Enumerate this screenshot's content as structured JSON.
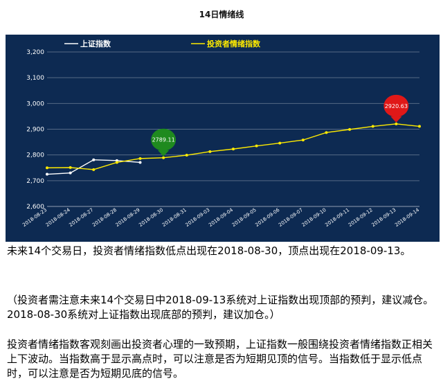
{
  "page": {
    "title": "14日情绪线",
    "paragraph1": "未来14个交易日，投资者情绪指数低点出现在2018-08-30，顶点出现在2018-09-13。",
    "paragraph2": "（投资者需注意未来14个交易日中2018-09-13系统对上证指数出现顶部的预判，建议减仓。2018-08-30系统对上证指数出现底部的预判，建议加仓。）",
    "paragraph3": "投资者情绪指数客观刻画出投资者心理的一致预期，上证指数一般围绕投资者情绪指数正相关上下波动。当指数高于显示高点时，可以注意是否为短期见顶的信号。当指数低于显示低点时，可以注意是否为短期见底的信号。"
  },
  "colors": {
    "background": "#0d2a52",
    "sse_line": "#ffffff",
    "sentiment_line": "#ffeb00",
    "low_marker": "#1f8a1f",
    "high_marker": "#e01818"
  },
  "chart_data": {
    "type": "line",
    "title": "14日情绪线",
    "categories": [
      "2018-08-23",
      "2018-08-24",
      "2018-08-27",
      "2018-08-28",
      "2018-08-29",
      "2018-08-30",
      "2018-08-31",
      "2018-09-03",
      "2018-09-04",
      "2018-09-05",
      "2018-09-06",
      "2018-09-07",
      "2018-09-10",
      "2018-09-11",
      "2018-09-12",
      "2018-09-13",
      "2018-09-14"
    ],
    "series": [
      {
        "name": "上证指数",
        "values": [
          2725,
          2730,
          2781,
          2778,
          2771,
          null,
          null,
          null,
          null,
          null,
          null,
          null,
          null,
          null,
          null,
          null,
          null
        ]
      },
      {
        "name": "投资者情绪指数",
        "values": [
          2750,
          2751,
          2743,
          2771,
          2786,
          2789.11,
          2799,
          2813,
          2823,
          2835,
          2846,
          2858,
          2887,
          2899,
          2911,
          2920.63,
          2911
        ]
      }
    ],
    "yticks": [
      "2,600",
      "2,700",
      "2,800",
      "2,900",
      "3,000",
      "3,100",
      "3,200"
    ],
    "ylim": [
      2600,
      3200
    ],
    "grid": true,
    "legend": "top",
    "annotations": [
      {
        "label": "2789.11",
        "x": "2018-08-30",
        "y": 2789.11,
        "kind": "low"
      },
      {
        "label": "2920.63",
        "x": "2018-09-13",
        "y": 2920.63,
        "kind": "high"
      }
    ]
  }
}
